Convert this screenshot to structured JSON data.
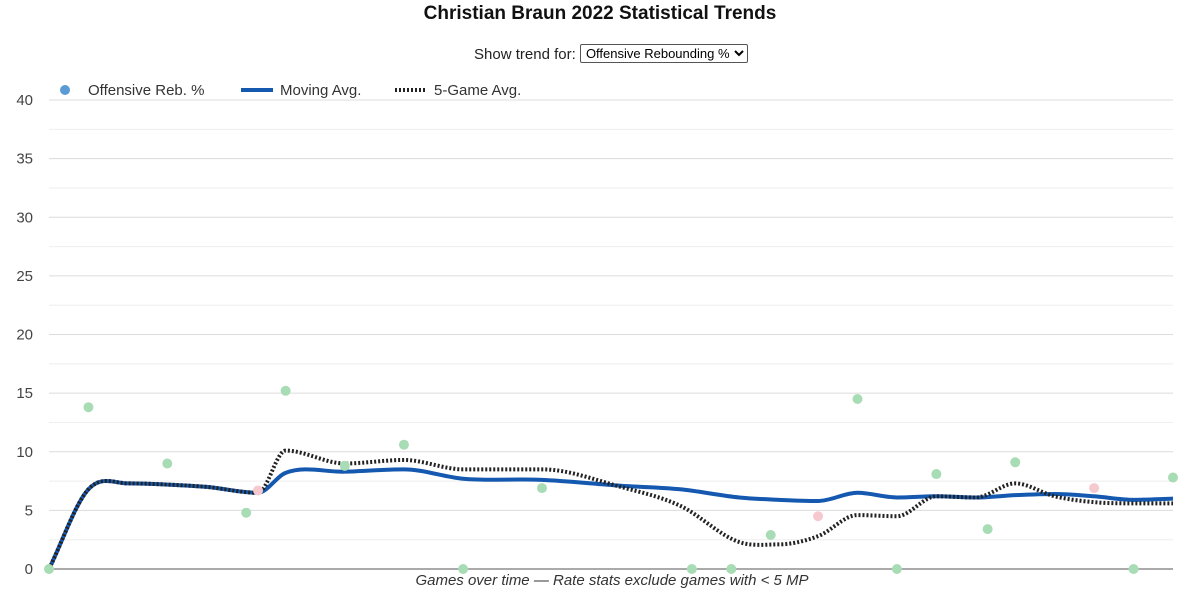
{
  "title": "Christian Braun 2022 Statistical Trends",
  "selector": {
    "label": "Show trend for:",
    "selected": "Offensive Rebounding %"
  },
  "colors": {
    "point_normal": "#a8dcb5",
    "point_low": "#f6c9cf",
    "legend_dot": "#5b9bd5",
    "moving_avg": "#1458b0",
    "five_game": "#222222",
    "grid": "#e3e3e3"
  },
  "chart_data": {
    "type": "line",
    "title": "Christian Braun 2022 Statistical Trends",
    "xlabel": "Games over time — Rate stats exclude games with < 5 MP",
    "ylabel": "",
    "ylim": [
      0,
      40
    ],
    "yticks": [
      "0",
      "5",
      "10",
      "15",
      "20",
      "25",
      "30",
      "35",
      "40"
    ],
    "legend": [
      "Offensive Reb. %",
      "Moving Avg.",
      "5-Game Avg."
    ],
    "legend_position": "top-left",
    "grid": true,
    "series": [
      {
        "name": "Offensive Reb. %",
        "kind": "points",
        "x": [
          0,
          1,
          3,
          5,
          5.3,
          6,
          7.5,
          9,
          10.5,
          12.5,
          16.3,
          17.3,
          18.3,
          19.5,
          20.5,
          21.5,
          22.5,
          23.8,
          24.5,
          26.5,
          27.5,
          28.5
        ],
        "values": [
          0,
          13.8,
          9.0,
          4.8,
          6.7,
          15.2,
          8.8,
          10.6,
          0,
          6.9,
          0,
          0,
          2.9,
          4.5,
          14.5,
          0,
          8.1,
          3.4,
          9.1,
          6.9,
          0,
          7.8
        ],
        "low_minutes": [
          false,
          false,
          false,
          false,
          true,
          false,
          false,
          false,
          false,
          false,
          false,
          false,
          false,
          true,
          false,
          false,
          false,
          false,
          false,
          true,
          false,
          false
        ]
      },
      {
        "name": "Moving Avg.",
        "kind": "line",
        "x": [
          0,
          1,
          2,
          3,
          4,
          5.3,
          6,
          7.5,
          9,
          10.5,
          12.5,
          14.5,
          16,
          17.5,
          18.5,
          19.5,
          20.5,
          21.5,
          22.5,
          23.5,
          24.5,
          25.5,
          26.5,
          27.5,
          28.5
        ],
        "values": [
          0,
          6.8,
          7.3,
          7.2,
          7.0,
          6.5,
          8.2,
          8.3,
          8.5,
          7.7,
          7.6,
          7.1,
          6.8,
          6.1,
          5.9,
          5.8,
          6.5,
          6.1,
          6.2,
          6.1,
          6.3,
          6.4,
          6.2,
          5.9,
          6.0
        ]
      },
      {
        "name": "5-Game Avg.",
        "kind": "line",
        "x": [
          0,
          1,
          2,
          3,
          4,
          5.3,
          6,
          7.5,
          9,
          10.5,
          12.5,
          14.5,
          16,
          17.5,
          18.5,
          19.5,
          20.5,
          21.5,
          22.5,
          23.5,
          24.5,
          25.5,
          26.5,
          27.5,
          28.5
        ],
        "values": [
          0,
          6.8,
          7.3,
          7.2,
          7.0,
          6.5,
          10.1,
          9.0,
          9.3,
          8.5,
          8.5,
          7.0,
          5.4,
          2.3,
          2.1,
          2.8,
          4.6,
          4.5,
          6.2,
          6.1,
          7.3,
          6.2,
          5.7,
          5.6,
          5.6
        ]
      }
    ]
  }
}
